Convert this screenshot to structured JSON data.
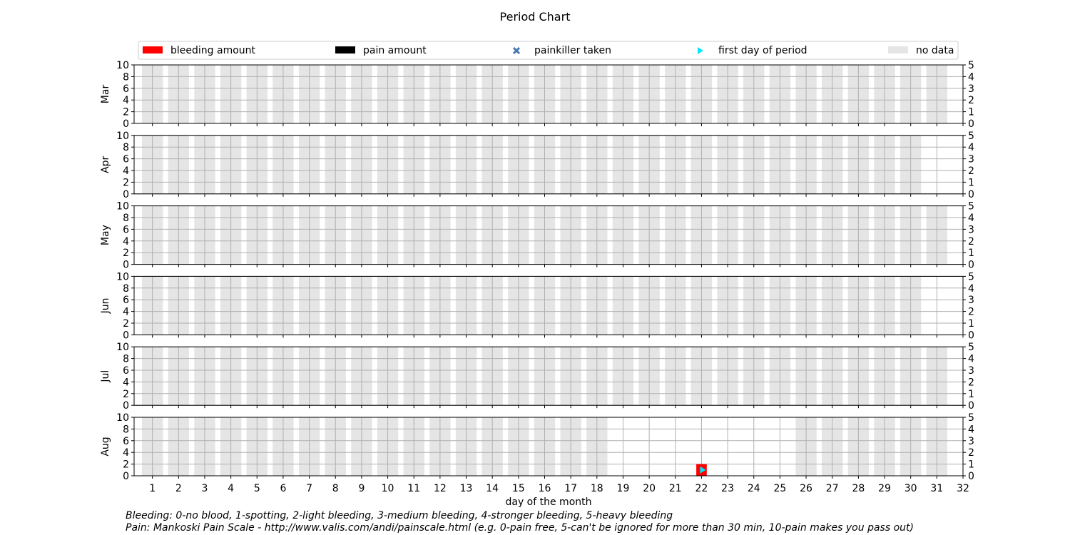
{
  "chart_data": {
    "type": "bar",
    "title": "Period Chart",
    "xlabel": "day of the month",
    "x_ticks": [
      1,
      2,
      3,
      4,
      5,
      6,
      7,
      8,
      9,
      10,
      11,
      12,
      13,
      14,
      15,
      16,
      17,
      18,
      19,
      20,
      21,
      22,
      23,
      24,
      25,
      26,
      27,
      28,
      29,
      30,
      31,
      32
    ],
    "xlim": [
      0.3,
      32
    ],
    "left_axis": {
      "ylim": [
        0,
        10
      ],
      "ticks": [
        0,
        2,
        4,
        6,
        8,
        10
      ]
    },
    "right_axis": {
      "ylim": [
        0,
        5
      ],
      "ticks": [
        0,
        1,
        2,
        3,
        4,
        5
      ]
    },
    "grid": true,
    "legend": {
      "placement": "top",
      "entries": [
        {
          "label": "bleeding amount",
          "marker": "red-rect",
          "color": "#ff0000"
        },
        {
          "label": "pain amount",
          "marker": "black-rect",
          "color": "#000000"
        },
        {
          "label": "painkiller taken",
          "marker": "x-marker",
          "color": "#4878b0"
        },
        {
          "label": "first day of period",
          "marker": "triangle-right",
          "color": "#00e5ff"
        },
        {
          "label": "no data",
          "marker": "gray-rect",
          "color": "#e5e5e5"
        }
      ]
    },
    "months": [
      {
        "label": "Mar",
        "days_in_month": 31,
        "no_data_days": [
          1,
          2,
          3,
          4,
          5,
          6,
          7,
          8,
          9,
          10,
          11,
          12,
          13,
          14,
          15,
          16,
          17,
          18,
          19,
          20,
          21,
          22,
          23,
          24,
          25,
          26,
          27,
          28,
          29,
          30,
          31
        ],
        "bleeding": [],
        "pain": [],
        "painkiller": [],
        "first_day": []
      },
      {
        "label": "Apr",
        "days_in_month": 30,
        "no_data_days": [
          1,
          2,
          3,
          4,
          5,
          6,
          7,
          8,
          9,
          10,
          11,
          12,
          13,
          14,
          15,
          16,
          17,
          18,
          19,
          20,
          21,
          22,
          23,
          24,
          25,
          26,
          27,
          28,
          29,
          30
        ],
        "bleeding": [],
        "pain": [],
        "painkiller": [],
        "first_day": []
      },
      {
        "label": "May",
        "days_in_month": 31,
        "no_data_days": [
          1,
          2,
          3,
          4,
          5,
          6,
          7,
          8,
          9,
          10,
          11,
          12,
          13,
          14,
          15,
          16,
          17,
          18,
          19,
          20,
          21,
          22,
          23,
          24,
          25,
          26,
          27,
          28,
          29,
          30,
          31
        ],
        "bleeding": [],
        "pain": [],
        "painkiller": [],
        "first_day": []
      },
      {
        "label": "Jun",
        "days_in_month": 30,
        "no_data_days": [
          1,
          2,
          3,
          4,
          5,
          6,
          7,
          8,
          9,
          10,
          11,
          12,
          13,
          14,
          15,
          16,
          17,
          18,
          19,
          20,
          21,
          22,
          23,
          24,
          25,
          26,
          27,
          28,
          29,
          30
        ],
        "bleeding": [],
        "pain": [],
        "painkiller": [],
        "first_day": []
      },
      {
        "label": "Jul",
        "days_in_month": 31,
        "no_data_days": [
          1,
          2,
          3,
          4,
          5,
          6,
          7,
          8,
          9,
          10,
          11,
          12,
          13,
          14,
          15,
          16,
          17,
          18,
          19,
          20,
          21,
          22,
          23,
          24,
          25,
          26,
          27,
          28,
          29,
          30,
          31
        ],
        "bleeding": [],
        "pain": [],
        "painkiller": [],
        "first_day": []
      },
      {
        "label": "Aug",
        "days_in_month": 31,
        "no_data_days": [
          1,
          2,
          3,
          4,
          5,
          6,
          7,
          8,
          9,
          10,
          11,
          12,
          13,
          14,
          15,
          16,
          17,
          18,
          26,
          27,
          28,
          29,
          30,
          31
        ],
        "bleeding": [
          {
            "day": 22,
            "value": 1
          }
        ],
        "pain": [],
        "painkiller": [],
        "first_day": [
          22
        ]
      }
    ],
    "notes": [
      "Bleeding: 0-no blood, 1-spotting, 2-light bleeding, 3-medium bleeding, 4-stronger bleeding, 5-heavy bleeding",
      "Pain: Mankoski Pain Scale - http://www.valis.com/andi/painscale.html (e.g. 0-pain free, 5-can't be ignored for more than 30 min, 10-pain makes you pass out)"
    ]
  }
}
